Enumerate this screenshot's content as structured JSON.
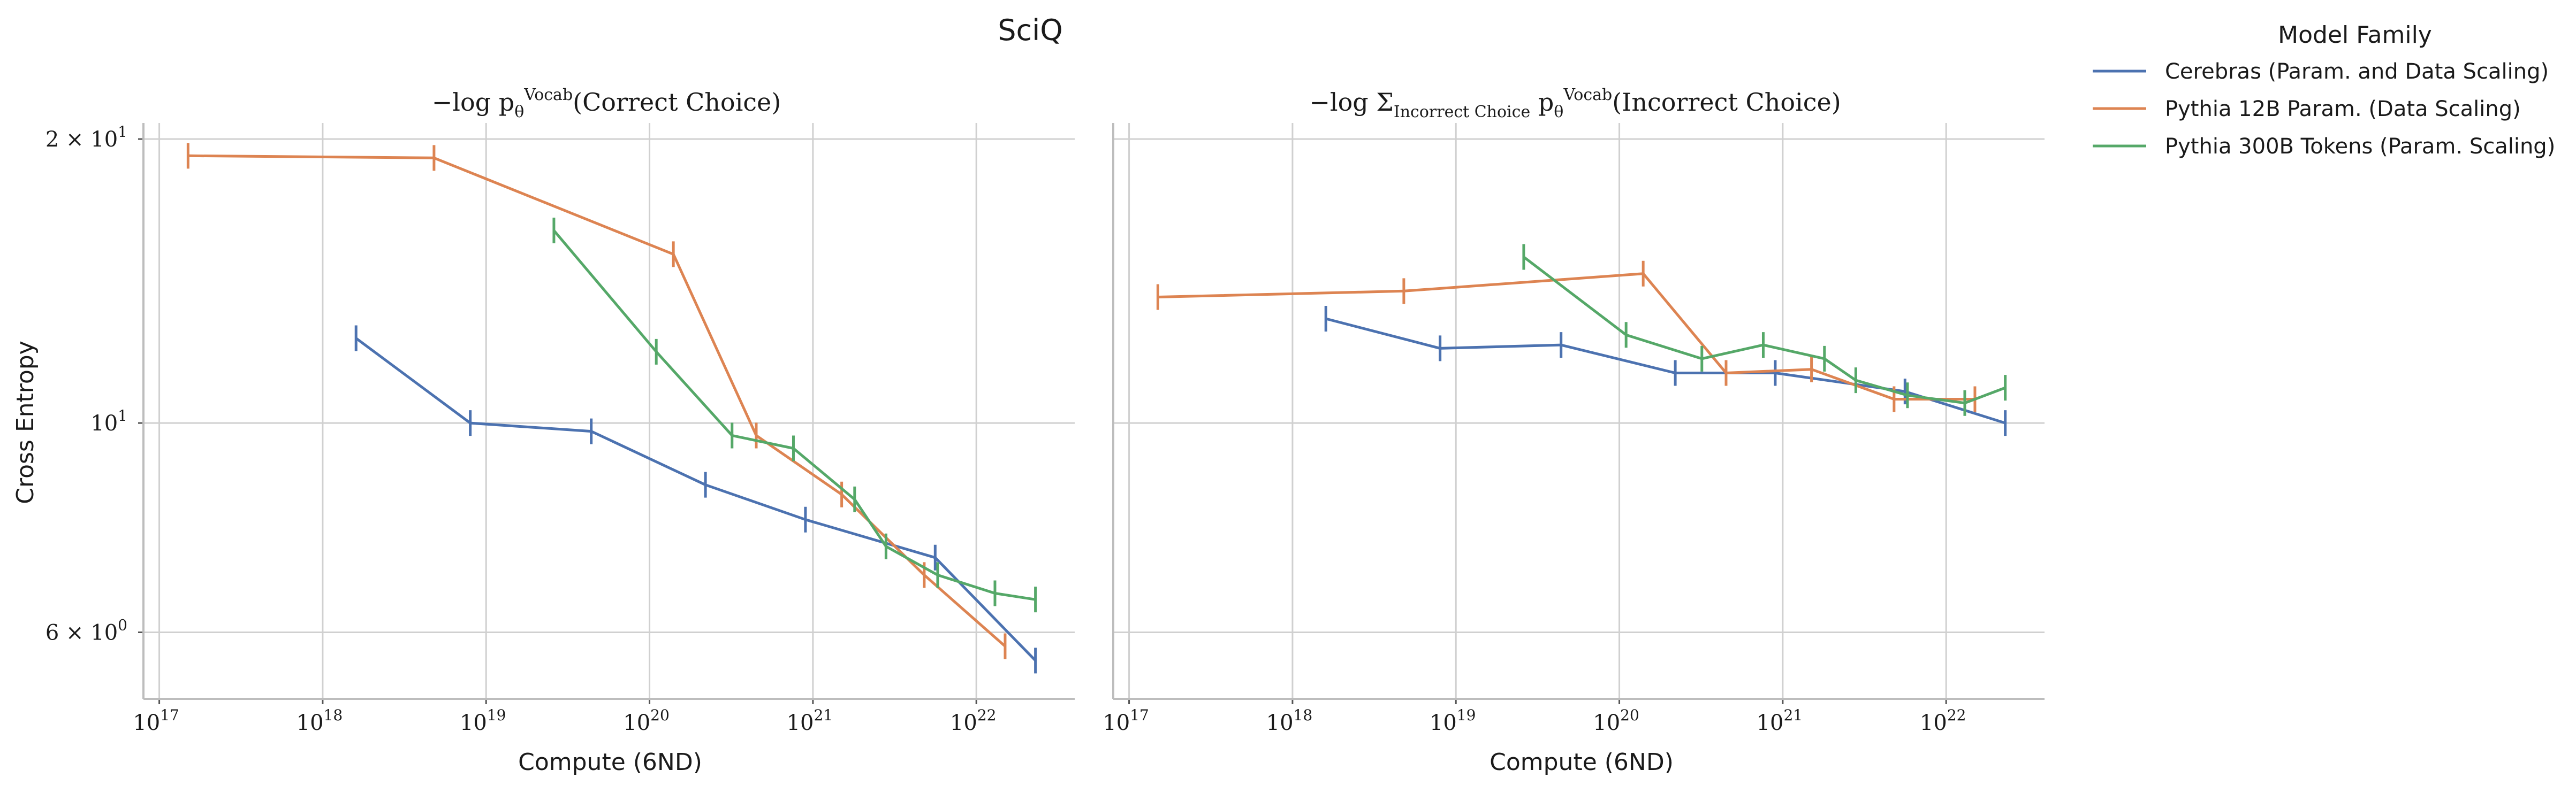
{
  "figure": {
    "title": "SciQ"
  },
  "legend": {
    "title": "Model Family",
    "placement": "right, outside"
  },
  "chart_data": [
    {
      "type": "line",
      "title": "−log p_θ^Vocab(Correct Choice)",
      "title_parts": {
        "main": "−log p",
        "theta": "θ",
        "sup": "Vocab",
        "tail": "(Correct Choice)"
      },
      "xlabel": "Compute (6ND)",
      "ylabel": "Cross Entropy",
      "xscale": "log",
      "yscale": "log",
      "xlim": [
        8e+16,
        4e+22
      ],
      "ylim": [
        5.1,
        20.8
      ],
      "xticks": [
        {
          "base": "10",
          "exp": "17"
        },
        {
          "base": "10",
          "exp": "18"
        },
        {
          "base": "10",
          "exp": "19"
        },
        {
          "base": "10",
          "exp": "20"
        },
        {
          "base": "10",
          "exp": "21"
        },
        {
          "base": "10",
          "exp": "22"
        }
      ],
      "yticks": [
        {
          "value": 20,
          "label": "2 × 10",
          "exp": "1"
        },
        {
          "value": 10,
          "label": "10",
          "exp": "1"
        },
        {
          "value": 6,
          "label": "6 × 10",
          "exp": "0"
        }
      ],
      "grid": true,
      "series": [
        {
          "name": "Cerebras (Param. and Data Scaling)",
          "color": "#4c72b0",
          "x": [
            1.6e+18,
            8e+18,
            4.4e+19,
            2.2e+20,
            9e+20,
            5.6e+21,
            2.3e+22
          ],
          "y": [
            12.3,
            10.0,
            9.8,
            8.6,
            7.9,
            7.2,
            5.6
          ]
        },
        {
          "name": "Pythia 12B Param. (Data Scaling)",
          "color": "#dd8452",
          "x": [
            1.5e+17,
            4.8e+18,
            1.4e+20,
            4.5e+20,
            1.5e+21,
            4.8e+21,
            1.5e+22
          ],
          "y": [
            19.2,
            19.1,
            15.1,
            9.7,
            8.4,
            6.9,
            5.8
          ]
        },
        {
          "name": "Pythia 300B Tokens (Param. Scaling)",
          "color": "#55a868",
          "x": [
            2.6e+19,
            1.1e+20,
            3.2e+20,
            7.6e+20,
            1.8e+21,
            2.8e+21,
            5.8e+21,
            1.3e+22,
            2.3e+22
          ],
          "y": [
            16.0,
            11.9,
            9.7,
            9.4,
            8.3,
            7.4,
            6.9,
            6.6,
            6.5
          ]
        }
      ]
    },
    {
      "type": "line",
      "title": "−log Σ_Incorrect Choice p_θ^Vocab(Incorrect Choice)",
      "title_parts": {
        "main": "−log Σ",
        "sub": "Incorrect Choice",
        "p": " p",
        "theta": "θ",
        "sup": "Vocab",
        "tail": "(Incorrect Choice)"
      },
      "xlabel": "Compute (6ND)",
      "ylabel": "",
      "xscale": "log",
      "yscale": "log",
      "xlim": [
        8e+16,
        4e+22
      ],
      "ylim": [
        5.1,
        20.8
      ],
      "xticks": [
        {
          "base": "10",
          "exp": "17"
        },
        {
          "base": "10",
          "exp": "18"
        },
        {
          "base": "10",
          "exp": "19"
        },
        {
          "base": "10",
          "exp": "20"
        },
        {
          "base": "10",
          "exp": "21"
        },
        {
          "base": "10",
          "exp": "22"
        }
      ],
      "grid": true,
      "series": [
        {
          "name": "Cerebras (Param. and Data Scaling)",
          "color": "#4c72b0",
          "x": [
            1.6e+18,
            8e+18,
            4.4e+19,
            2.2e+20,
            9e+20,
            5.6e+21,
            2.3e+22
          ],
          "y": [
            12.9,
            12.0,
            12.1,
            11.3,
            11.3,
            10.8,
            10.0
          ]
        },
        {
          "name": "Pythia 12B Param. (Data Scaling)",
          "color": "#dd8452",
          "x": [
            1.5e+17,
            4.8e+18,
            1.4e+20,
            4.5e+20,
            1.5e+21,
            4.8e+21,
            1.5e+22
          ],
          "y": [
            13.6,
            13.8,
            14.4,
            11.3,
            11.4,
            10.6,
            10.6
          ]
        },
        {
          "name": "Pythia 300B Tokens (Param. Scaling)",
          "color": "#55a868",
          "x": [
            2.6e+19,
            1.1e+20,
            3.2e+20,
            7.6e+20,
            1.8e+21,
            2.8e+21,
            5.8e+21,
            1.3e+22,
            2.3e+22
          ],
          "y": [
            15.0,
            12.4,
            11.7,
            12.1,
            11.7,
            11.1,
            10.7,
            10.5,
            10.9
          ]
        }
      ]
    }
  ]
}
